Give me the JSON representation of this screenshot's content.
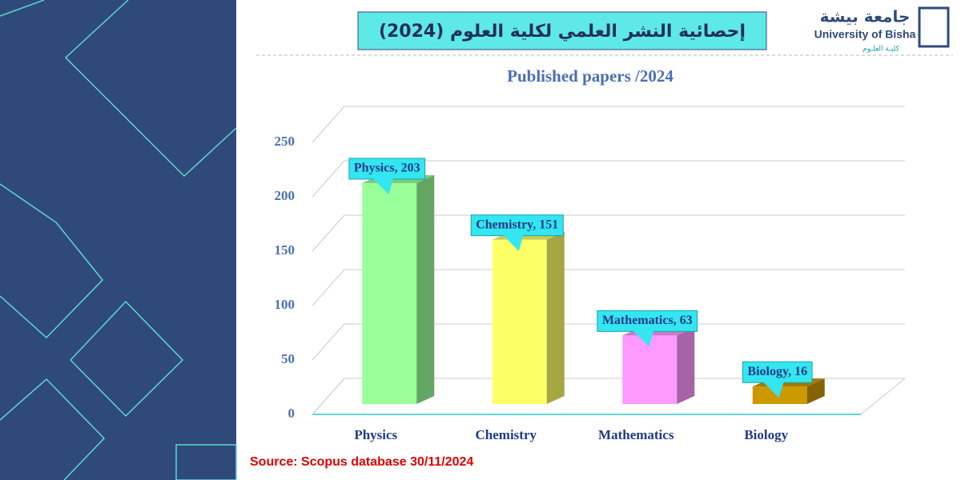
{
  "header": {
    "title": "إحصائية النشر العلمي لكلية العلوم (2024)",
    "logo_arabic": "جامعة بيشة",
    "logo_english": "University of Bisha",
    "logo_college": "كليـة العلـوم"
  },
  "chart_data": {
    "type": "bar",
    "title": "Published papers /2024",
    "categories": [
      "Physics",
      "Chemistry",
      "Mathematics",
      "Biology"
    ],
    "values": [
      203,
      151,
      63,
      16
    ],
    "value_labels": [
      "Physics, 203",
      "Chemistry, 151",
      "Mathematics, 63",
      "Biology, 16"
    ],
    "colors": [
      "#99ff99",
      "#ffff66",
      "#ff99ff",
      "#cc9900"
    ],
    "ylim": [
      0,
      250
    ],
    "yticks": [
      0,
      50,
      100,
      150,
      200,
      250
    ],
    "grid": true
  },
  "source": "Source: Scopus database 30/11/2024"
}
